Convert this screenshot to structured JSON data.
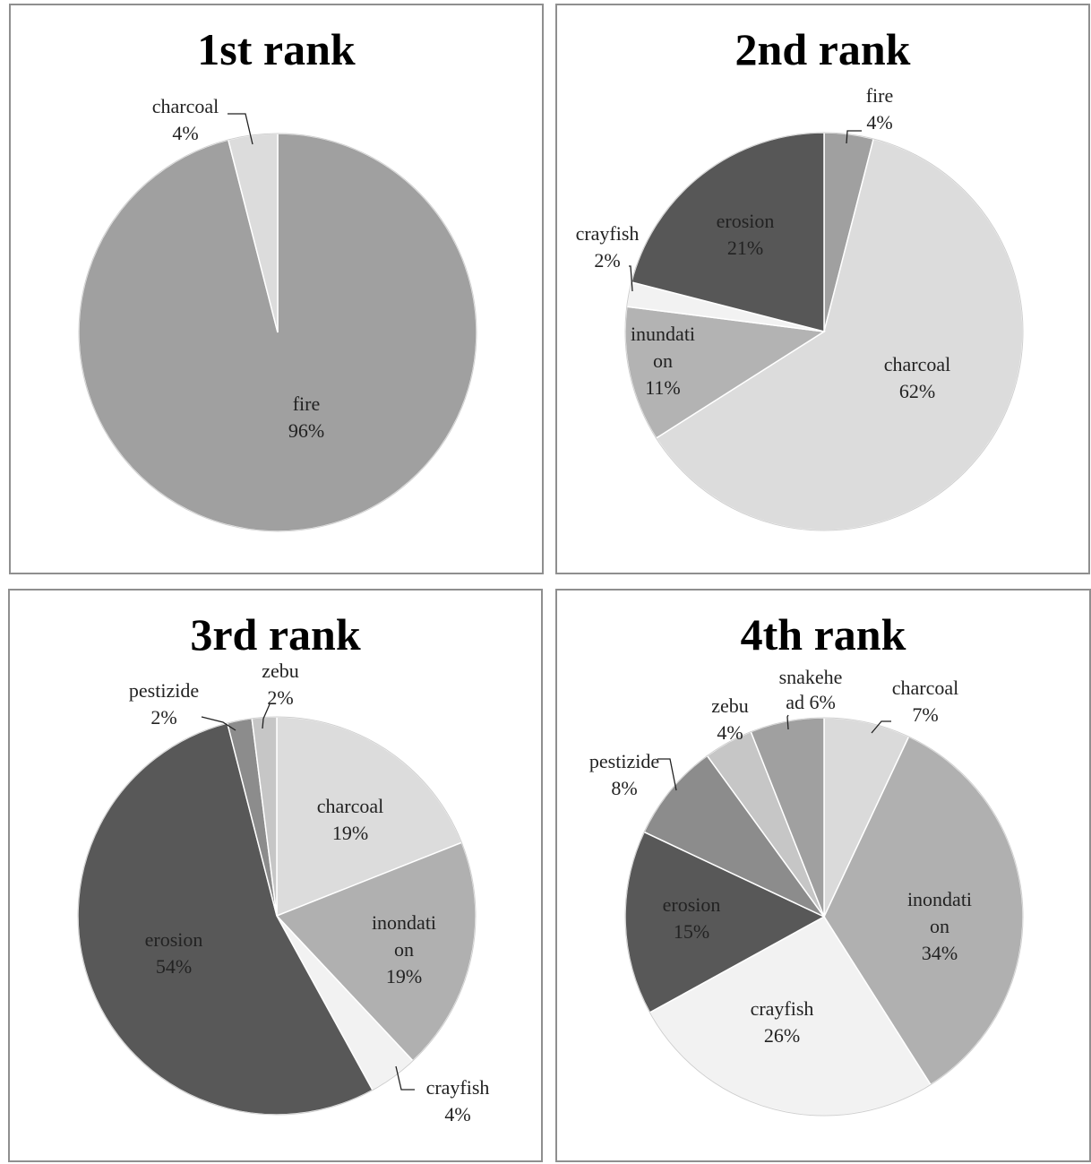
{
  "chart_data": [
    {
      "type": "pie",
      "title": "1st rank",
      "slices": [
        {
          "label": "fire",
          "value": 96,
          "value_label": "96%",
          "color": "#a0a0a0"
        },
        {
          "label": "charcoal",
          "value": 4,
          "value_label": "4%",
          "color": "#dcdcdc"
        }
      ]
    },
    {
      "type": "pie",
      "title": "2nd rank",
      "slices": [
        {
          "label": "fire",
          "value": 4,
          "value_label": "4%",
          "color": "#a0a0a0"
        },
        {
          "label": "charcoal",
          "value": 62,
          "value_label": "62%",
          "color": "#dcdcdc"
        },
        {
          "label": "inundati on",
          "value": 11,
          "value_label": "11%",
          "color": "#b3b3b3"
        },
        {
          "label": "crayfish",
          "value": 2,
          "value_label": "2%",
          "color": "#f2f2f2"
        },
        {
          "label": "erosion",
          "value": 21,
          "value_label": "21%",
          "color": "#575757"
        }
      ]
    },
    {
      "type": "pie",
      "title": "3rd rank",
      "slices": [
        {
          "label": "charcoal",
          "value": 19,
          "value_label": "19%",
          "color": "#dcdcdc"
        },
        {
          "label": "inondati on",
          "value": 19,
          "value_label": "19%",
          "color": "#b0b0b0"
        },
        {
          "label": "crayfish",
          "value": 4,
          "value_label": "4%",
          "color": "#f2f2f2"
        },
        {
          "label": "erosion",
          "value": 54,
          "value_label": "54%",
          "color": "#585858"
        },
        {
          "label": "pestizide",
          "value": 2,
          "value_label": "2%",
          "color": "#8c8c8c"
        },
        {
          "label": "zebu",
          "value": 2,
          "value_label": "2%",
          "color": "#c6c6c6"
        }
      ]
    },
    {
      "type": "pie",
      "title": "4th rank",
      "slices": [
        {
          "label": "charcoal",
          "value": 7,
          "value_label": "7%",
          "color": "#dadada"
        },
        {
          "label": "inondati on",
          "value": 34,
          "value_label": "34%",
          "color": "#b0b0b0"
        },
        {
          "label": "crayfish",
          "value": 26,
          "value_label": "26%",
          "color": "#f2f2f2"
        },
        {
          "label": "erosion",
          "value": 15,
          "value_label": "15%",
          "color": "#585858"
        },
        {
          "label": "pestizide",
          "value": 8,
          "value_label": "8%",
          "color": "#8c8c8c"
        },
        {
          "label": "zebu",
          "value": 4,
          "value_label": "4%",
          "color": "#c6c6c6"
        },
        {
          "label": "snakehe ad",
          "value": 6,
          "value_label": "6%",
          "color": "#a0a0a0"
        }
      ]
    }
  ]
}
